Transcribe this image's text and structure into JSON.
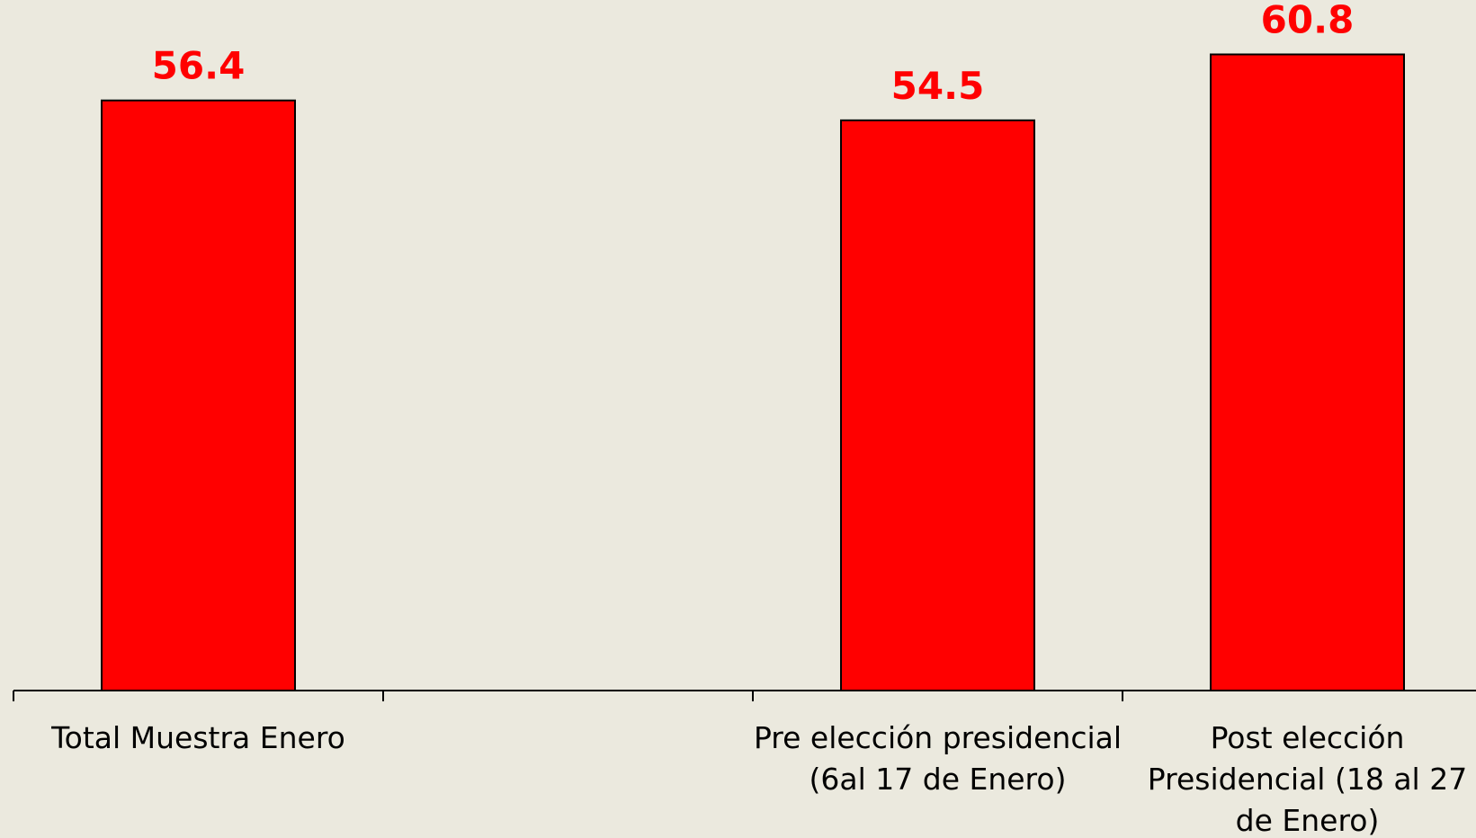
{
  "chart_data": {
    "type": "bar",
    "categories": [
      "Total Muestra Enero",
      "",
      "Pre elección presidencial (6al 17 de Enero)",
      "Post elección Presidencial (18 al 27 de Enero)"
    ],
    "category_lines": [
      [
        "Total Muestra Enero"
      ],
      [],
      [
        "Pre elección presidencial",
        "(6al 17 de Enero)"
      ],
      [
        "Post elección",
        "Presidencial (18 al 27",
        "de Enero)"
      ]
    ],
    "values": [
      56.4,
      null,
      54.5,
      60.8
    ],
    "value_labels": [
      "56.4",
      "",
      "54.5",
      "60.8"
    ],
    "ylim": [
      0,
      66
    ],
    "grid": false,
    "legend": "none",
    "colors": {
      "bar": "#ff0000",
      "bar_outline": "#000000",
      "value_label": "#ff0000",
      "background": "#ebe9de"
    }
  }
}
